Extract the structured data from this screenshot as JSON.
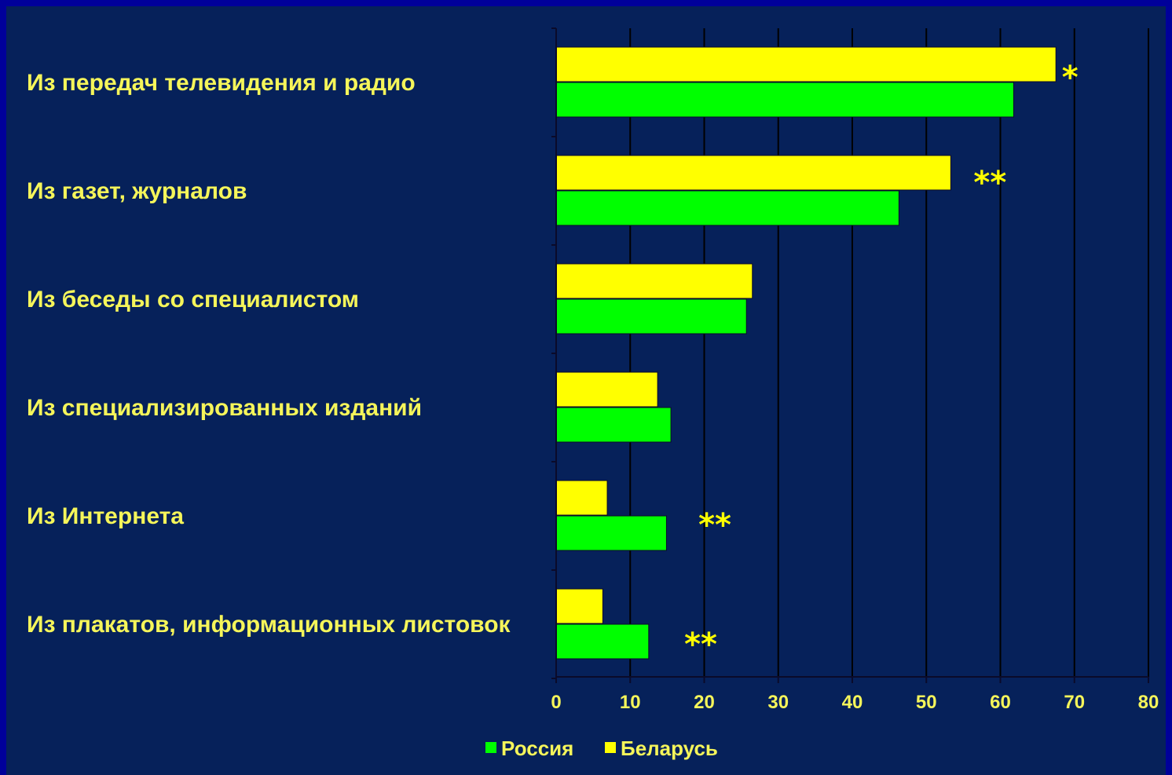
{
  "chart_data": {
    "type": "bar",
    "orientation": "horizontal",
    "categories": [
      "Из передач телевидения и радио",
      "Из газет, журналов",
      "Из беседы со специалистом",
      "Из специализированных изданий",
      "Из Интернета",
      "Из плакатов, информационных листовок"
    ],
    "series": [
      {
        "name": "Беларусь",
        "color": "#ffff00",
        "values": [
          67.5,
          53.3,
          26.5,
          13.7,
          6.9,
          6.3
        ]
      },
      {
        "name": "Россия",
        "color": "#00ff00",
        "values": [
          61.8,
          46.3,
          25.7,
          15.5,
          14.9,
          12.5
        ]
      }
    ],
    "annotations": [
      "*",
      "**",
      "",
      "",
      "**",
      "**"
    ],
    "xlim": [
      0,
      80
    ],
    "xticks": [
      "0",
      "10",
      "20",
      "30",
      "40",
      "50",
      "60",
      "70",
      "80"
    ],
    "grid": "vertical",
    "legend": {
      "placement": "bottom",
      "order": [
        "Россия",
        "Беларусь"
      ]
    },
    "colors": {
      "background": "#06215a",
      "border": "#00009a",
      "text": "#f5f55a",
      "gridline": "#000000"
    }
  }
}
